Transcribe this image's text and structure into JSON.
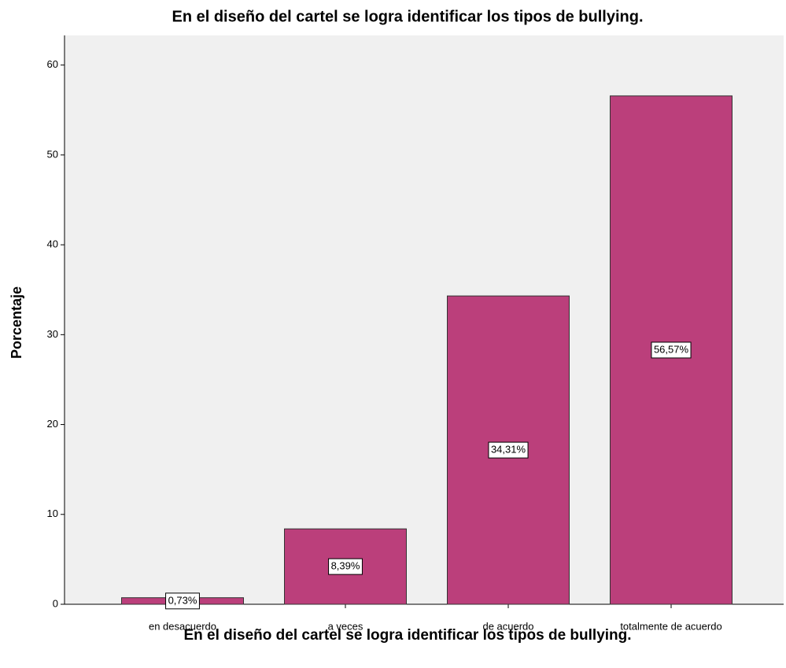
{
  "chart_data": {
    "type": "bar",
    "title": "En el diseño del cartel se logra identificar los tipos de bullying.",
    "x_label": "En el diseño del cartel se logra identificar los tipos de bullying.",
    "y_label": "Porcentaje",
    "categories": [
      "en desacuerdo",
      "a veces",
      "de acuerdo",
      "totalmente de acuerdo"
    ],
    "values": [
      0.73,
      8.39,
      34.31,
      56.57
    ],
    "value_labels": [
      "0,73%",
      "8,39%",
      "34,31%",
      "56,57%"
    ],
    "color": "#bb3f7b",
    "ylim": [
      0,
      63.3
    ],
    "yticks": [
      0,
      10,
      20,
      30,
      40,
      50,
      60
    ]
  }
}
